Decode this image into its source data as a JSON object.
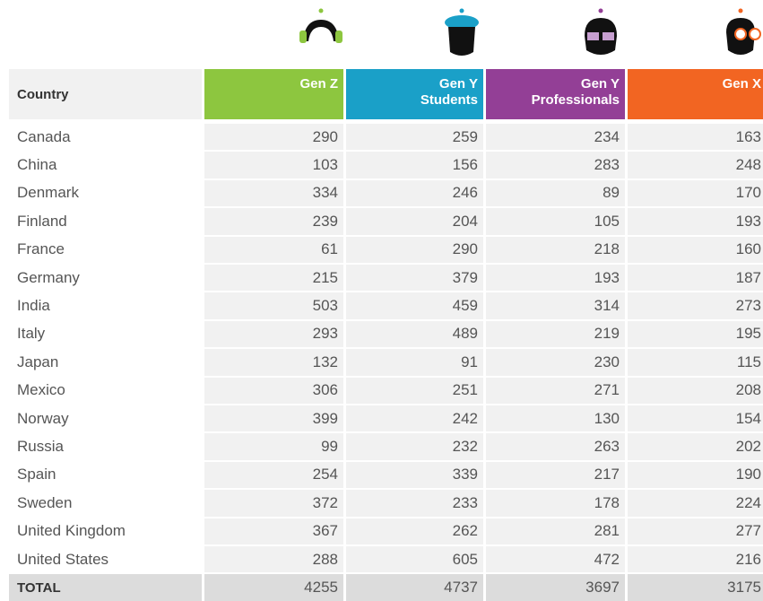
{
  "table": {
    "header": {
      "country": "Country",
      "columns": [
        [
          "Gen Z"
        ],
        [
          "Gen Y",
          "Students"
        ],
        [
          "Gen Y",
          "Professionals"
        ],
        [
          "Gen X"
        ]
      ]
    },
    "rows": [
      [
        "Canada",
        290,
        259,
        234,
        163
      ],
      [
        "China",
        103,
        156,
        283,
        248
      ],
      [
        "Denmark",
        334,
        246,
        89,
        170
      ],
      [
        "Finland",
        239,
        204,
        105,
        193
      ],
      [
        "France",
        61,
        290,
        218,
        160
      ],
      [
        "Germany",
        215,
        379,
        193,
        187
      ],
      [
        "India",
        503,
        459,
        314,
        273
      ],
      [
        "Italy",
        293,
        489,
        219,
        195
      ],
      [
        "Japan",
        132,
        91,
        230,
        115
      ],
      [
        "Mexico",
        306,
        251,
        271,
        208
      ],
      [
        "Norway",
        399,
        242,
        130,
        154
      ],
      [
        "Russia",
        99,
        232,
        263,
        202
      ],
      [
        "Spain",
        254,
        339,
        217,
        190
      ],
      [
        "Sweden",
        372,
        233,
        178,
        224
      ],
      [
        "United Kingdom",
        367,
        262,
        281,
        277
      ],
      [
        "United States",
        288,
        605,
        472,
        216
      ]
    ],
    "total": [
      "TOTAL",
      4255,
      4737,
      3697,
      3175
    ]
  }
}
